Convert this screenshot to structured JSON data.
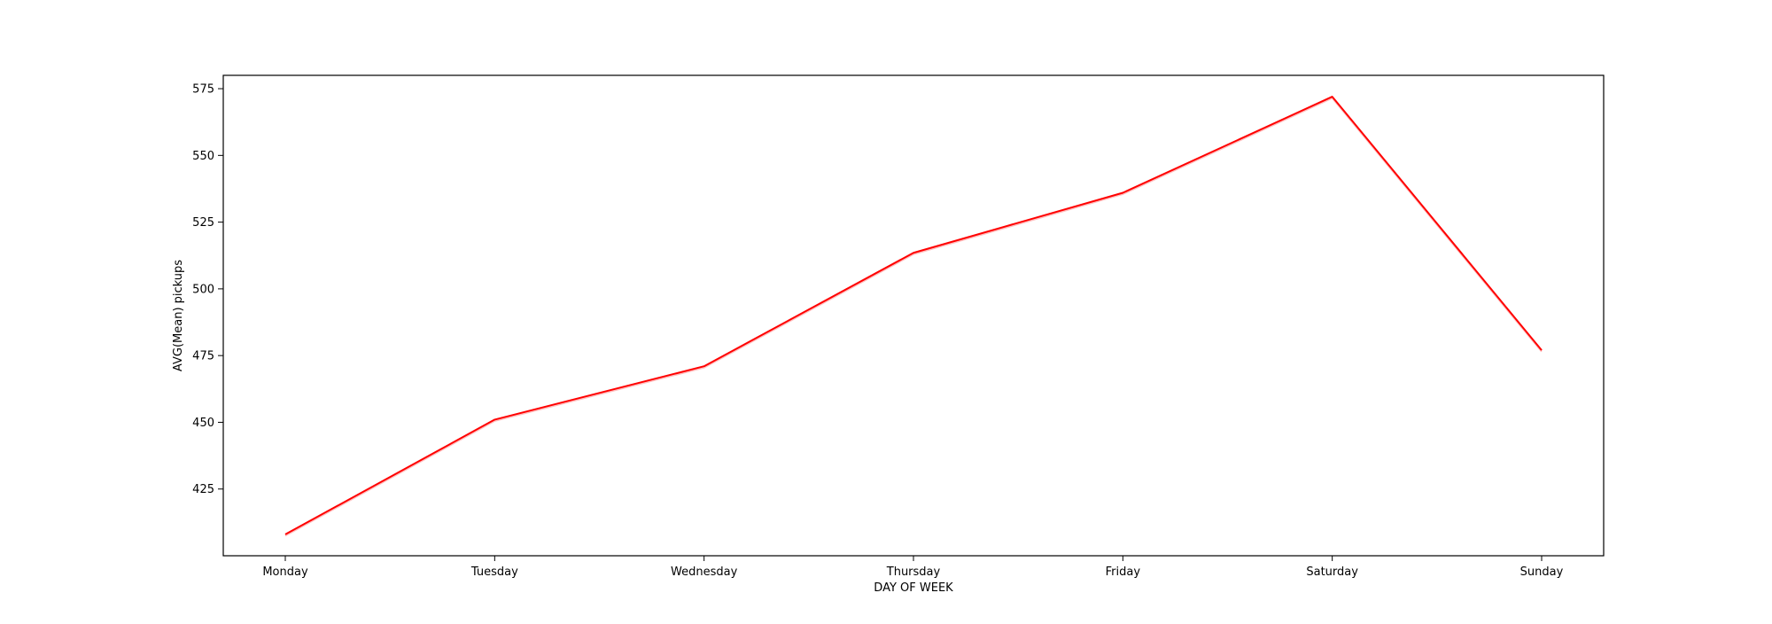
{
  "chart_data": {
    "type": "line",
    "title": "",
    "xlabel": "DAY OF WEEK",
    "ylabel": "AVG(Mean) pickups",
    "categories": [
      "Monday",
      "Tuesday",
      "Wednesday",
      "Thursday",
      "Friday",
      "Saturday",
      "Sunday"
    ],
    "series": [
      {
        "values": [
          408,
          451,
          471,
          513.5,
          536,
          572,
          477
        ],
        "color": "#ff0000"
      }
    ],
    "ylim": [
      400,
      580
    ],
    "yticks": [
      425,
      450,
      475,
      500,
      525,
      550,
      575
    ],
    "grid": false,
    "legend": "none"
  }
}
